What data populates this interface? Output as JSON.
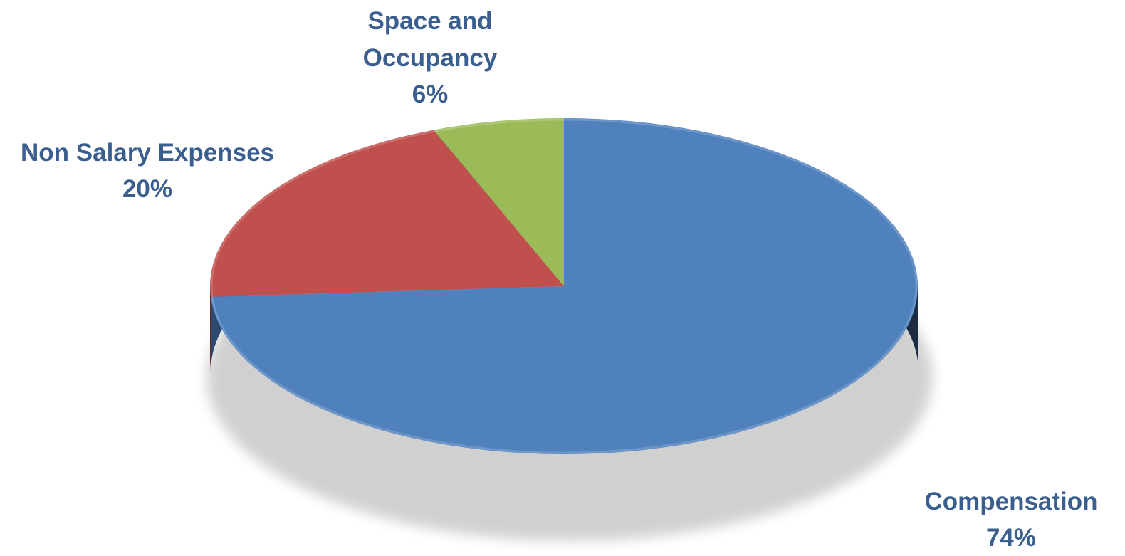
{
  "chart_data": {
    "type": "pie",
    "style": "3d",
    "title": "",
    "slices": [
      {
        "label": "Compensation",
        "value": 74,
        "value_label": "74%",
        "color": "#4f81bd",
        "side_color": "#2f4d73"
      },
      {
        "label": "Non Salary Expenses",
        "value": 20,
        "value_label": "20%",
        "color": "#c0504d",
        "side_color": "#7f2f2d"
      },
      {
        "label": "Space and Occupancy",
        "value": 6,
        "value_label": "6%",
        "color": "#9bbb59",
        "side_color": "#617a35"
      }
    ],
    "label_color": "#3a5f8f",
    "legend": "none"
  }
}
